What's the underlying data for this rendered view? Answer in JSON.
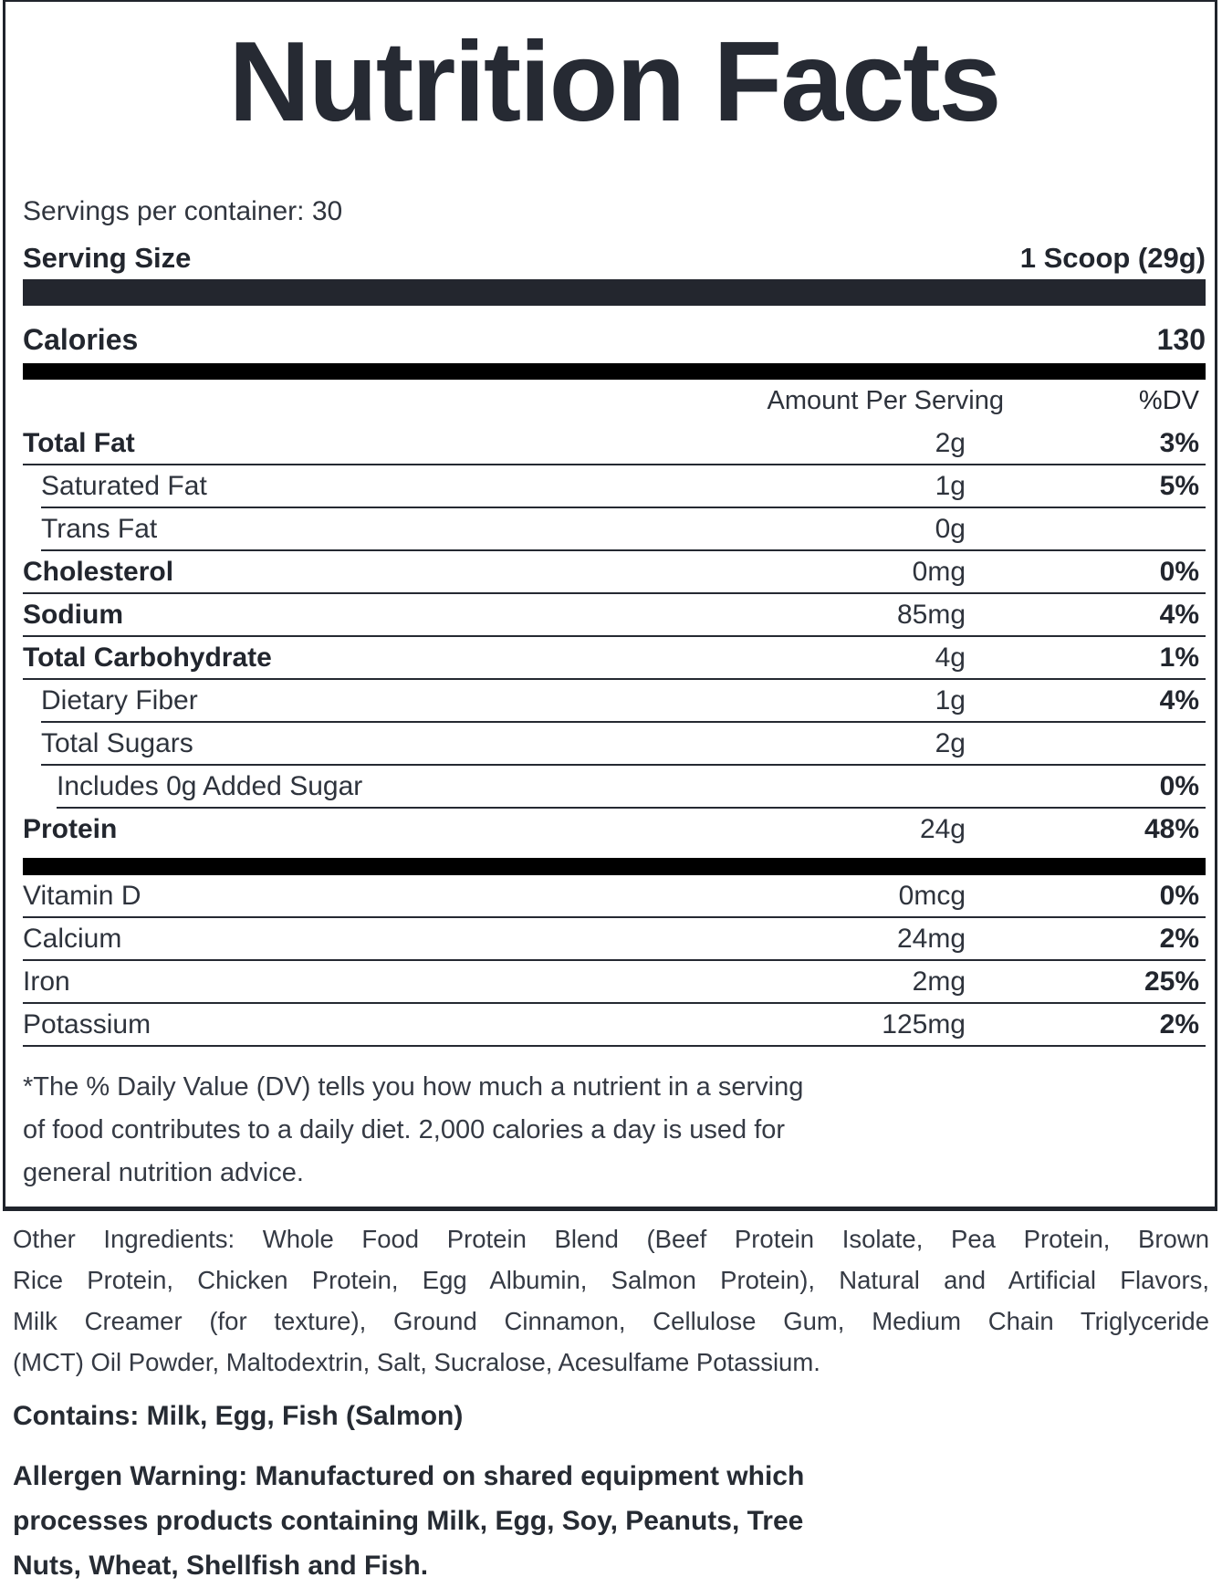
{
  "title": "Nutrition Facts",
  "servings_per_container": "Servings per container: 30",
  "serving_size": {
    "label": "Serving Size",
    "value": "1 Scoop (29g)"
  },
  "calories": {
    "label": "Calories",
    "value": "130"
  },
  "columns": {
    "amount_header": "Amount Per Serving",
    "dv_header": "%DV"
  },
  "nutrients": [
    {
      "label": "Total Fat",
      "amount": "2g",
      "dv": "3%",
      "bold": true,
      "indent": 0
    },
    {
      "label": "Saturated Fat",
      "amount": "1g",
      "dv": "5%",
      "bold": false,
      "indent": 1
    },
    {
      "label": "Trans Fat",
      "amount": "0g",
      "dv": "",
      "bold": false,
      "indent": 1
    },
    {
      "label": "Cholesterol",
      "amount": "0mg",
      "dv": "0%",
      "bold": true,
      "indent": 0
    },
    {
      "label": "Sodium",
      "amount": "85mg",
      "dv": "4%",
      "bold": true,
      "indent": 0
    },
    {
      "label": "Total Carbohydrate",
      "amount": "4g",
      "dv": "1%",
      "bold": true,
      "indent": 0
    },
    {
      "label": "Dietary Fiber",
      "amount": "1g",
      "dv": "4%",
      "bold": false,
      "indent": 1
    },
    {
      "label": "Total Sugars",
      "amount": "2g",
      "dv": "",
      "bold": false,
      "indent": 1
    },
    {
      "label": "Includes 0g Added Sugar",
      "amount": "",
      "dv": "0%",
      "bold": false,
      "indent": 2
    },
    {
      "label": "Protein",
      "amount": "24g",
      "dv": "48%",
      "bold": true,
      "indent": 0
    }
  ],
  "micronutrients": [
    {
      "label": "Vitamin D",
      "amount": "0mcg",
      "dv": "0%"
    },
    {
      "label": "Calcium",
      "amount": "24mg",
      "dv": "2%"
    },
    {
      "label": "Iron",
      "amount": "2mg",
      "dv": "25%"
    },
    {
      "label": "Potassium",
      "amount": "125mg",
      "dv": "2%"
    }
  ],
  "footnote_lines": [
    "*The % Daily Value (DV) tells you how much a nutrient in a serving",
    "of food contributes to a daily diet. 2,000 calories a day is used for",
    "general nutrition advice."
  ],
  "other_ingredients": {
    "lines": [
      "Other Ingredients: Whole Food Protein Blend (Beef Protein Isolate, Pea Protein, Brown",
      "Rice Protein, Chicken Protein, Egg Albumin, Salmon Protein), Natural and Artificial Flavors,",
      "Milk Creamer (for texture), Ground Cinnamon, Cellulose Gum, Medium Chain Triglyceride",
      "(MCT) Oil Powder, Maltodextrin, Salt, Sucralose, Acesulfame Potassium."
    ]
  },
  "contains": "Contains: Milk, Egg, Fish (Salmon)",
  "allergen_lines": [
    "Allergen Warning: Manufactured on shared equipment which",
    "processes products containing Milk, Egg, Soy, Peanuts, Tree",
    "Nuts, Wheat, Shellfish and Fish."
  ],
  "colors": {
    "ink": "#22262e",
    "charcoal_bar": "#23262e",
    "black_bar": "#000000",
    "regular_text": "#353a44",
    "background": "#ffffff"
  }
}
